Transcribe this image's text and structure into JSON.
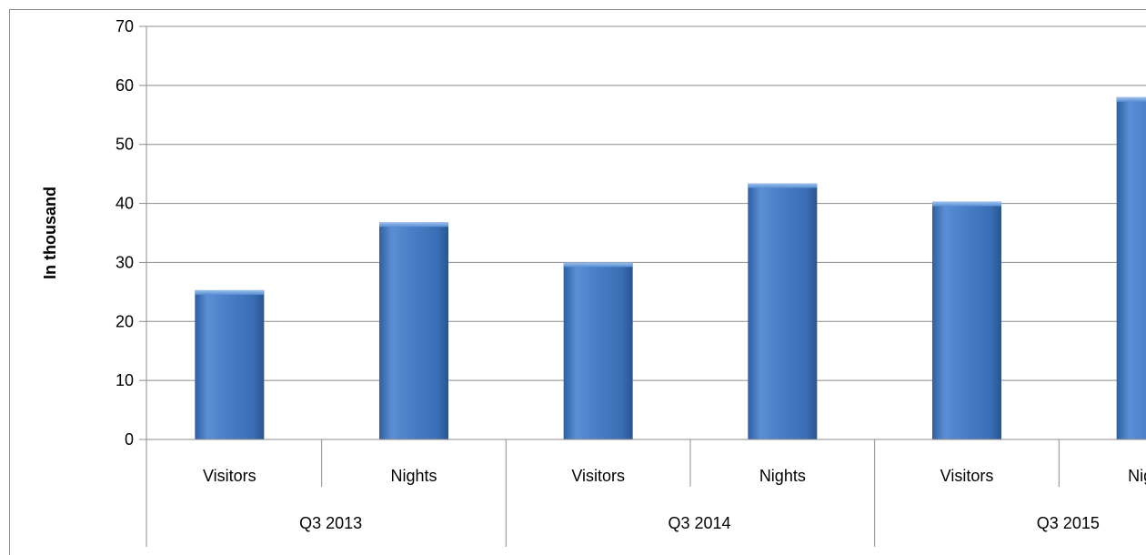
{
  "chart_data": {
    "type": "bar",
    "title": "",
    "xlabel": "",
    "ylabel": "In thousand",
    "ylim": [
      0,
      70
    ],
    "yticks": [
      0,
      10,
      20,
      30,
      40,
      50,
      60,
      70
    ],
    "grid": true,
    "legend": "none",
    "groups": [
      "Q3 2013",
      "Q3 2014",
      "Q3 2015"
    ],
    "categories": [
      {
        "label": "Visitors",
        "group": "Q3 2013"
      },
      {
        "label": "Nights",
        "group": "Q3 2013"
      },
      {
        "label": "Visitors",
        "group": "Q3 2014"
      },
      {
        "label": "Nights",
        "group": "Q3 2014"
      },
      {
        "label": "Visitors",
        "group": "Q3 2015"
      },
      {
        "label": "Nights",
        "group": "Q3 2015"
      }
    ],
    "values": [
      25.3,
      36.8,
      30.0,
      43.4,
      40.3,
      58.0
    ],
    "colors": {
      "bar_main": "#4a7fc7",
      "bar_light": "#8ab4e6",
      "bar_dark": "#2c5a9a",
      "grid": "#8c8c8c",
      "axis": "#8c8c8c"
    }
  }
}
